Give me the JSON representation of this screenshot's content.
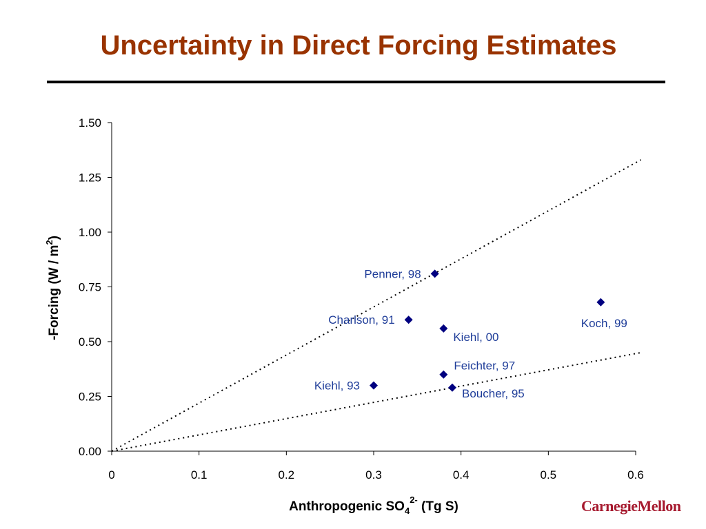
{
  "slide": {
    "title": "Uncertainty in Direct Forcing Estimates",
    "logo_text": "CarnegieMellon"
  },
  "colors": {
    "title": "#993300",
    "marker": "#000080",
    "label": "#1F3D99",
    "logo": "#a6192e"
  },
  "chart_data": {
    "type": "scatter",
    "title": "",
    "xlabel": {
      "main": "Anthropogenic SO",
      "sub": "4",
      "sup": "2-",
      "tail": " (Tg S)"
    },
    "ylabel": {
      "main": "-Forcing (W / m",
      "sup": "2",
      "tail": ")"
    },
    "xlim": [
      0,
      0.6
    ],
    "ylim": [
      0,
      1.5
    ],
    "x_ticks": [
      0,
      0.1,
      0.2,
      0.3,
      0.4,
      0.5,
      0.6
    ],
    "x_tick_labels": [
      "0",
      "0.1",
      "0.2",
      "0.3",
      "0.4",
      "0.5",
      "0.6"
    ],
    "y_ticks": [
      0,
      0.25,
      0.5,
      0.75,
      1.0,
      1.25,
      1.5
    ],
    "y_tick_labels": [
      "0.00",
      "0.25",
      "0.50",
      "0.75",
      "1.00",
      "1.25",
      "1.50"
    ],
    "grid": false,
    "points": [
      {
        "label": "Penner, 98",
        "x": 0.37,
        "y": 0.81,
        "label_side": "left"
      },
      {
        "label": "Charlson, 91",
        "x": 0.34,
        "y": 0.6,
        "label_side": "left"
      },
      {
        "label": "Kiehl, 00",
        "x": 0.38,
        "y": 0.56,
        "label_side": "below-right"
      },
      {
        "label": "Koch, 99",
        "x": 0.56,
        "y": 0.68,
        "label_side": "below"
      },
      {
        "label": "Feichter, 97",
        "x": 0.38,
        "y": 0.35,
        "label_side": "above-right"
      },
      {
        "label": "Kiehl, 93",
        "x": 0.3,
        "y": 0.3,
        "label_side": "left"
      },
      {
        "label": "Boucher, 95",
        "x": 0.39,
        "y": 0.29,
        "label_side": "right"
      }
    ],
    "reference_lines": [
      {
        "style": "dotted",
        "x0": 0,
        "y0": 0,
        "x1": 0.606,
        "y1": 1.33
      },
      {
        "style": "dotted",
        "x0": 0,
        "y0": 0,
        "x1": 0.606,
        "y1": 0.45
      }
    ]
  }
}
